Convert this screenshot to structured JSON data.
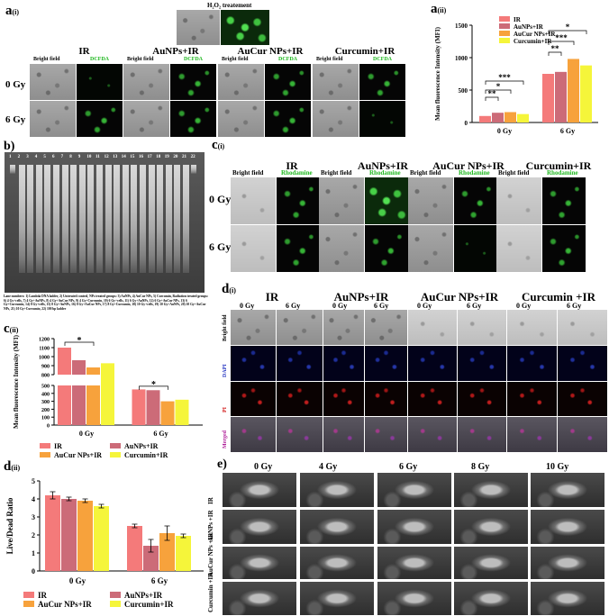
{
  "panel_labels": {
    "a_i": "a",
    "a_i_sub": "(i)",
    "a_ii": "a",
    "a_ii_sub": "(ii)",
    "b": "b)",
    "c_i": "c",
    "c_i_sub": "(i)",
    "c_ii": "c",
    "c_ii_sub": "(ii)",
    "d_i": "d",
    "d_i_sub": "(i)",
    "d_ii": "d",
    "d_ii_sub": "(ii)",
    "e": "e)"
  },
  "a_i": {
    "h2o2_title": "H₂O₂ treatement",
    "groups": [
      "IR",
      "AuNPs+IR",
      "AuCur NPs+IR",
      "Curcumin+IR"
    ],
    "sub_labels": [
      "Bright field",
      "DCFDA"
    ],
    "rows": [
      "0 Gy",
      "6 Gy"
    ]
  },
  "c_i": {
    "groups": [
      "IR",
      "AuNPs+IR",
      "AuCur NPs+IR",
      "Curcumin+IR"
    ],
    "sub_labels": [
      "Bright field",
      "Rhodamine"
    ],
    "rows": [
      "0 Gy",
      "6 Gy"
    ]
  },
  "d_i": {
    "groups": [
      "IR",
      "AuNPs+IR",
      "AuCur NPs+IR",
      "Curcumin +IR"
    ],
    "doses": [
      "0 Gy",
      "6 Gy"
    ],
    "rows": [
      "Bright field",
      "DAPI",
      "PI",
      "Merged"
    ]
  },
  "e": {
    "doses": [
      "0 Gy",
      "4 Gy",
      "6 Gy",
      "8 Gy",
      "10 Gy"
    ],
    "rows": [
      "IR",
      "AuNPs +IR",
      "AuCur NPs +IR",
      "Curcumin +IR"
    ]
  },
  "b": {
    "lane_numbers": [
      "1",
      "2",
      "3",
      "4",
      "5",
      "6",
      "7",
      "8",
      "9",
      "10",
      "11",
      "12",
      "13",
      "14",
      "15",
      "16",
      "17",
      "18",
      "19",
      "20",
      "21",
      "22"
    ],
    "caption": "Lane numbers: 1) Lambda DNA ladder, 2) Untreated control, NPs treated groups: 3) AuNPs, 4) AuCur NPs, 5) Curcumin, Radiation treated groups: 6) 4 Gy+cells, 7) 4 Gy+AuNPs, 8) 4 Gy+AuCur NPs, 9) 4 Gy+Curcumin, 10) 6 Gy+cells, 11) 6 Gy+AuNPs, 12) 6 Gy+AuCur NPs, 13) 6 Gy+Curcumin, 14) 8 Gy+cells, 15) 8 Gy+AuNPs, 16) 8 Gy+AuCur NPs, 17) 8 Gy+Curcumin, 18) 10 Gy+cells, 19) 10 Gy+AuNPs, 20) 10 Gy+AuCur NPs, 21) 10 Gy+Curcumin, 22) 100 bp ladder"
  },
  "colors": {
    "IR": "#f47a7a",
    "AuNPs+IR": "#cc6b78",
    "AuCur NPs+IR": "#f7a23c",
    "Curcumin+IR": "#f5f53a"
  },
  "chart_data": [
    {
      "id": "a_ii",
      "type": "bar",
      "categories": [
        "0 Gy",
        "6 Gy"
      ],
      "series": [
        {
          "name": "IR",
          "values": [
            100,
            750
          ]
        },
        {
          "name": "AuNPs+IR",
          "values": [
            150,
            780
          ]
        },
        {
          "name": "AuCur NPs+IR",
          "values": [
            160,
            980
          ]
        },
        {
          "name": "Curcumin+IR",
          "values": [
            130,
            880
          ]
        }
      ],
      "ylabel": "Mean fluorescence Intensity (MFI)",
      "yticks": [
        0,
        500,
        1000,
        1500
      ],
      "ylim": [
        0,
        1500
      ],
      "significance": [
        "***",
        "*",
        "**",
        "*",
        "***",
        "**"
      ]
    },
    {
      "id": "c_ii",
      "type": "bar",
      "categories": [
        "0 Gy",
        "6 Gy"
      ],
      "series": [
        {
          "name": "IR",
          "values": [
            1100,
            450
          ]
        },
        {
          "name": "AuNPs+IR",
          "values": [
            960,
            440
          ]
        },
        {
          "name": "AuCur NPs+IR",
          "values": [
            880,
            300
          ]
        },
        {
          "name": "Curcumin+IR",
          "values": [
            780,
            320
          ]
        }
      ],
      "ylabel": "Mean fluorescence Intensity (MFI)",
      "yticks_top": [
        "800",
        "900",
        "1000",
        "1100",
        "1200"
      ],
      "yticks_bottom": [
        "0",
        "100",
        "200",
        "300",
        "400",
        "500"
      ],
      "significance": [
        "*",
        "*"
      ],
      "legend": [
        "IR",
        "AuNPs+IR",
        "AuCur NPs+IR",
        "Curcumin+IR"
      ]
    },
    {
      "id": "d_ii",
      "type": "bar",
      "categories": [
        "0 Gy",
        "6 Gy"
      ],
      "series": [
        {
          "name": "IR",
          "values": [
            4.2,
            2.5
          ]
        },
        {
          "name": "AuNPs+IR",
          "values": [
            4.0,
            1.4
          ]
        },
        {
          "name": "AuCur NPs+IR",
          "values": [
            3.9,
            2.1
          ]
        },
        {
          "name": "Curcumin+IR",
          "values": [
            3.6,
            1.95
          ]
        }
      ],
      "errors": [
        [
          0.2,
          0.1
        ],
        [
          0.1,
          0.35
        ],
        [
          0.1,
          0.4
        ],
        [
          0.1,
          0.1
        ]
      ],
      "ylabel": "Live/Dead Ratio",
      "yticks": [
        0,
        1,
        2,
        3,
        4,
        5
      ],
      "ylim": [
        0,
        5
      ],
      "legend": [
        "IR",
        "AuNPs+IR",
        "AuCur NPs+IR",
        "Curcumin+IR"
      ]
    }
  ]
}
